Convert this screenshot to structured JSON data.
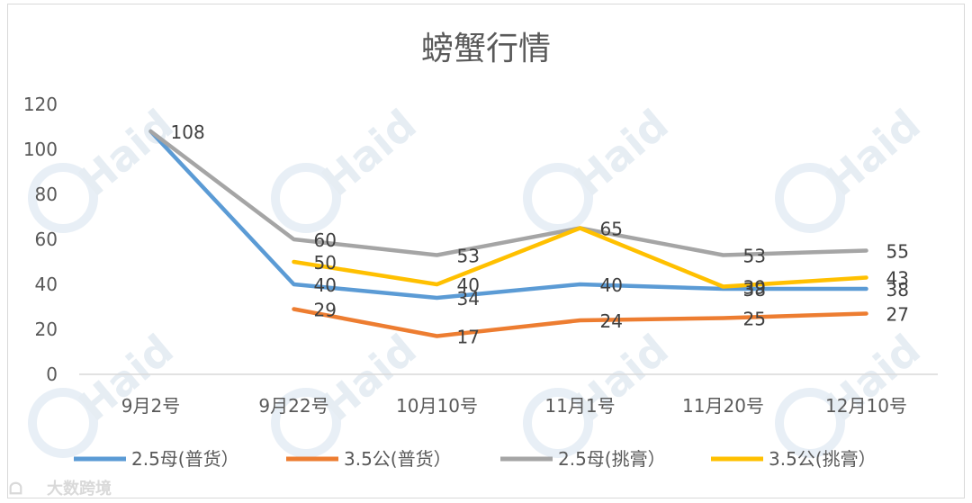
{
  "chart_data": {
    "type": "line",
    "title": "螃蟹行情",
    "categories": [
      "9月2号",
      "9月22号",
      "10月10号",
      "11月1号",
      "11月20号",
      "12月10号"
    ],
    "ylim": [
      0,
      120
    ],
    "yticks": [
      0,
      20,
      40,
      60,
      80,
      100,
      120
    ],
    "grid": false,
    "legend_position": "bottom",
    "series": [
      {
        "name": "2.5母(普货）",
        "color": "#5b9bd5",
        "values": [
          108,
          40,
          34,
          40,
          38,
          38
        ]
      },
      {
        "name": "3.5公(普货）",
        "color": "#ed7d31",
        "values": [
          null,
          29,
          17,
          24,
          25,
          27
        ]
      },
      {
        "name": "2.5母(挑膏）",
        "color": "#a5a5a5",
        "values": [
          108,
          60,
          53,
          65,
          53,
          55
        ]
      },
      {
        "name": "3.5公(挑膏）",
        "color": "#ffc000",
        "values": [
          null,
          50,
          40,
          65,
          39,
          43
        ]
      }
    ],
    "data_labels": [
      {
        "series": 2,
        "index": 0,
        "text": "108"
      },
      {
        "series": 2,
        "index": 1,
        "text": "60"
      },
      {
        "series": 3,
        "index": 1,
        "text": "50"
      },
      {
        "series": 0,
        "index": 1,
        "text": "40"
      },
      {
        "series": 1,
        "index": 1,
        "text": "29"
      },
      {
        "series": 2,
        "index": 2,
        "text": "53"
      },
      {
        "series": 3,
        "index": 2,
        "text": "40"
      },
      {
        "series": 0,
        "index": 2,
        "text": "34"
      },
      {
        "series": 1,
        "index": 2,
        "text": "17"
      },
      {
        "series": 2,
        "index": 3,
        "text": "65"
      },
      {
        "series": 0,
        "index": 3,
        "text": "40"
      },
      {
        "series": 1,
        "index": 3,
        "text": "24"
      },
      {
        "series": 2,
        "index": 4,
        "text": "53"
      },
      {
        "series": 3,
        "index": 4,
        "text": "39"
      },
      {
        "series": 0,
        "index": 4,
        "text": "38"
      },
      {
        "series": 1,
        "index": 4,
        "text": "25"
      },
      {
        "series": 2,
        "index": 5,
        "text": "55"
      },
      {
        "series": 3,
        "index": 5,
        "text": "43"
      },
      {
        "series": 0,
        "index": 5,
        "text": "38"
      },
      {
        "series": 1,
        "index": 5,
        "text": "27"
      }
    ]
  },
  "watermark": {
    "text": "Haid"
  },
  "corner_brand": {
    "text": "大数跨境"
  }
}
